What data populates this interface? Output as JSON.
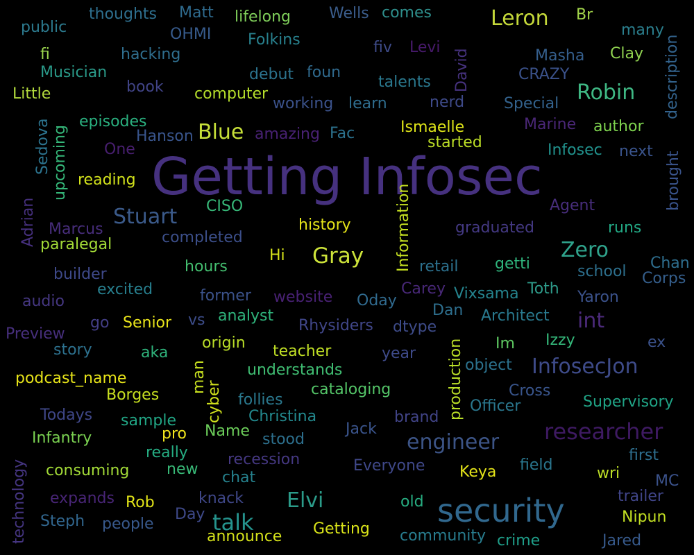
{
  "colors": {
    "background": "#000000"
  },
  "words": [
    {
      "text": "Getting Infosec",
      "color": "#46317f"
    },
    {
      "text": "security",
      "color": "#31688e"
    },
    {
      "text": "researcher",
      "color": "#3e1a62"
    },
    {
      "text": "Leron",
      "color": "#c4d83a"
    },
    {
      "text": "Robin",
      "color": "#3fb884"
    },
    {
      "text": "Blue",
      "color": "#c6df39"
    },
    {
      "text": "Stuart",
      "color": "#3b5a8a"
    },
    {
      "text": "Gray",
      "color": "#cde33a"
    },
    {
      "text": "Zero",
      "color": "#2fa38c"
    },
    {
      "text": "engineer",
      "color": "#3c5486"
    },
    {
      "text": "InfosecJon",
      "color": "#3e4b89"
    },
    {
      "text": "talk",
      "color": "#25938d"
    },
    {
      "text": "Elvi",
      "color": "#2b9b89"
    },
    {
      "text": "int",
      "color": "#4b2a7a"
    },
    {
      "text": "thoughts",
      "color": "#2e6f8e"
    },
    {
      "text": "Matt",
      "color": "#2f6b8e"
    },
    {
      "text": "lifelong",
      "color": "#7fce5a"
    },
    {
      "text": "Wells",
      "color": "#3b5d8c"
    },
    {
      "text": "comes",
      "color": "#2e8f8c"
    },
    {
      "text": "Br",
      "color": "#a3d64b"
    },
    {
      "text": "many",
      "color": "#2b7f8e"
    },
    {
      "text": "public",
      "color": "#2c7a8e"
    },
    {
      "text": "OHMI",
      "color": "#375b8c"
    },
    {
      "text": "Folkins",
      "color": "#28818e"
    },
    {
      "text": "fi",
      "color": "#9bd54e"
    },
    {
      "text": "hacking",
      "color": "#2f6e8e"
    },
    {
      "text": "fiv",
      "color": "#3e4b89"
    },
    {
      "text": "Levi",
      "color": "#481a6c"
    },
    {
      "text": "Masha",
      "color": "#355f8d"
    },
    {
      "text": "Clay",
      "color": "#8fd150"
    },
    {
      "text": "Musician",
      "color": "#2a9a89"
    },
    {
      "text": "debut",
      "color": "#2c738e"
    },
    {
      "text": "foun",
      "color": "#306a8e"
    },
    {
      "text": "CRAZY",
      "color": "#3b528b"
    },
    {
      "text": "Little",
      "color": "#b2da3d"
    },
    {
      "text": "book",
      "color": "#414487"
    },
    {
      "text": "computer",
      "color": "#b5de2b"
    },
    {
      "text": "talents",
      "color": "#2a788e"
    },
    {
      "text": "working",
      "color": "#3b528b"
    },
    {
      "text": "learn",
      "color": "#2f6d8e"
    },
    {
      "text": "nerd",
      "color": "#3e4a89"
    },
    {
      "text": "Special",
      "color": "#33628d"
    },
    {
      "text": "episodes",
      "color": "#2ab07f"
    },
    {
      "text": "Marine",
      "color": "#4a2777"
    },
    {
      "text": "author",
      "color": "#7ed34f"
    },
    {
      "text": "Hanson",
      "color": "#39558c"
    },
    {
      "text": "amazing",
      "color": "#482173"
    },
    {
      "text": "Fac",
      "color": "#2c728e"
    },
    {
      "text": "Ismaelle",
      "color": "#dde318"
    },
    {
      "text": "started",
      "color": "#bddf26"
    },
    {
      "text": "One",
      "color": "#481f70"
    },
    {
      "text": "Infosec",
      "color": "#21918c"
    },
    {
      "text": "next",
      "color": "#3a548c"
    },
    {
      "text": "reading",
      "color": "#d2e21b"
    },
    {
      "text": "CISO",
      "color": "#37b878"
    },
    {
      "text": "Agent",
      "color": "#472d7b"
    },
    {
      "text": "Marcus",
      "color": "#472d7b"
    },
    {
      "text": "history",
      "color": "#e5e419"
    },
    {
      "text": "graduated",
      "color": "#443983"
    },
    {
      "text": "runs",
      "color": "#22a884"
    },
    {
      "text": "paralegal",
      "color": "#a2da37"
    },
    {
      "text": "completed",
      "color": "#3c4f8a"
    },
    {
      "text": "Hi",
      "color": "#d5e21a"
    },
    {
      "text": "retail",
      "color": "#2c718e"
    },
    {
      "text": "getti",
      "color": "#2fb47c"
    },
    {
      "text": "school",
      "color": "#2d708e"
    },
    {
      "text": "Chan",
      "color": "#2e6e8e"
    },
    {
      "text": "builder",
      "color": "#3e4989"
    },
    {
      "text": "hours",
      "color": "#44bf70"
    },
    {
      "text": "Corps",
      "color": "#355f8d"
    },
    {
      "text": "excited",
      "color": "#277f8e"
    },
    {
      "text": "Carey",
      "color": "#482878"
    },
    {
      "text": "Vixsama",
      "color": "#25848e"
    },
    {
      "text": "Toth",
      "color": "#2e9b8a"
    },
    {
      "text": "audio",
      "color": "#453781"
    },
    {
      "text": "former",
      "color": "#3b528b"
    },
    {
      "text": "website",
      "color": "#482173"
    },
    {
      "text": "Oday",
      "color": "#306a8e"
    },
    {
      "text": "Yaron",
      "color": "#3b528b"
    },
    {
      "text": "Dan",
      "color": "#2e6f8e"
    },
    {
      "text": "Architect",
      "color": "#29798e"
    },
    {
      "text": "go",
      "color": "#433e85"
    },
    {
      "text": "Senior",
      "color": "#eae51a"
    },
    {
      "text": "vs",
      "color": "#3d4d8a"
    },
    {
      "text": "analyst",
      "color": "#2fb47c"
    },
    {
      "text": "Preview",
      "color": "#472f7d"
    },
    {
      "text": "Rhysiders",
      "color": "#404688"
    },
    {
      "text": "dtype",
      "color": "#3e4c8a"
    },
    {
      "text": "story",
      "color": "#2d718e"
    },
    {
      "text": "aka",
      "color": "#2fb47c"
    },
    {
      "text": "origin",
      "color": "#bade28"
    },
    {
      "text": "teacher",
      "color": "#c0df25"
    },
    {
      "text": "Im",
      "color": "#5ec962"
    },
    {
      "text": "Izzy",
      "color": "#34b679"
    },
    {
      "text": "ex",
      "color": "#3b528b"
    },
    {
      "text": "year",
      "color": "#3e4a89"
    },
    {
      "text": "object",
      "color": "#2c728e"
    },
    {
      "text": "understands",
      "color": "#40bd72"
    },
    {
      "text": "podcast_name",
      "color": "#e7e419"
    },
    {
      "text": "Borges",
      "color": "#c8e020"
    },
    {
      "text": "cataloging",
      "color": "#54c568"
    },
    {
      "text": "Cross",
      "color": "#39558c"
    },
    {
      "text": "follies",
      "color": "#2a788e"
    },
    {
      "text": "Officer",
      "color": "#2a778e"
    },
    {
      "text": "Supervisory",
      "color": "#20a486"
    },
    {
      "text": "Todays",
      "color": "#3f4788"
    },
    {
      "text": "sample",
      "color": "#21a685"
    },
    {
      "text": "Christina",
      "color": "#23898e"
    },
    {
      "text": "brand",
      "color": "#414487"
    },
    {
      "text": "Infantry",
      "color": "#7ad151"
    },
    {
      "text": "pro",
      "color": "#f1e51d"
    },
    {
      "text": "Name",
      "color": "#6ccd5a"
    },
    {
      "text": "Jack",
      "color": "#3a548c"
    },
    {
      "text": "stood",
      "color": "#2d708e"
    },
    {
      "text": "first",
      "color": "#2e6e8e"
    },
    {
      "text": "really",
      "color": "#25ac82"
    },
    {
      "text": "recession",
      "color": "#453882"
    },
    {
      "text": "Everyone",
      "color": "#3f4889"
    },
    {
      "text": "field",
      "color": "#2a768e"
    },
    {
      "text": "consuming",
      "color": "#a2da37"
    },
    {
      "text": "new",
      "color": "#38b977"
    },
    {
      "text": "chat",
      "color": "#26828e"
    },
    {
      "text": "Keya",
      "color": "#e5e419"
    },
    {
      "text": "wri",
      "color": "#bddf26"
    },
    {
      "text": "MC",
      "color": "#3b528b"
    },
    {
      "text": "expands",
      "color": "#482576"
    },
    {
      "text": "Rob",
      "color": "#e2e418"
    },
    {
      "text": "knack",
      "color": "#3f4788"
    },
    {
      "text": "old",
      "color": "#27ad81"
    },
    {
      "text": "trailer",
      "color": "#404588"
    },
    {
      "text": "Steph",
      "color": "#31668e"
    },
    {
      "text": "people",
      "color": "#38598c"
    },
    {
      "text": "Day",
      "color": "#3e4989"
    },
    {
      "text": "Getting",
      "color": "#d8e219"
    },
    {
      "text": "Nipun",
      "color": "#c2df23"
    },
    {
      "text": "announce",
      "color": "#d5e21a"
    },
    {
      "text": "community",
      "color": "#287c8e"
    },
    {
      "text": "crime",
      "color": "#1f9e89"
    },
    {
      "text": "Jared",
      "color": "#375a8c"
    },
    {
      "text": "description",
      "color": "#33638d"
    },
    {
      "text": "brought",
      "color": "#3a548c"
    },
    {
      "text": "David",
      "color": "#46327e"
    },
    {
      "text": "Sedova",
      "color": "#2c738e"
    },
    {
      "text": "upcoming",
      "color": "#35b779"
    },
    {
      "text": "Adrian",
      "color": "#46307e"
    },
    {
      "text": "Information",
      "color": "#c5e021"
    },
    {
      "text": "production",
      "color": "#bade28"
    },
    {
      "text": "man",
      "color": "#c8e020"
    },
    {
      "text": "cyber",
      "color": "#d0e11c"
    },
    {
      "text": "technology",
      "color": "#453581"
    }
  ]
}
